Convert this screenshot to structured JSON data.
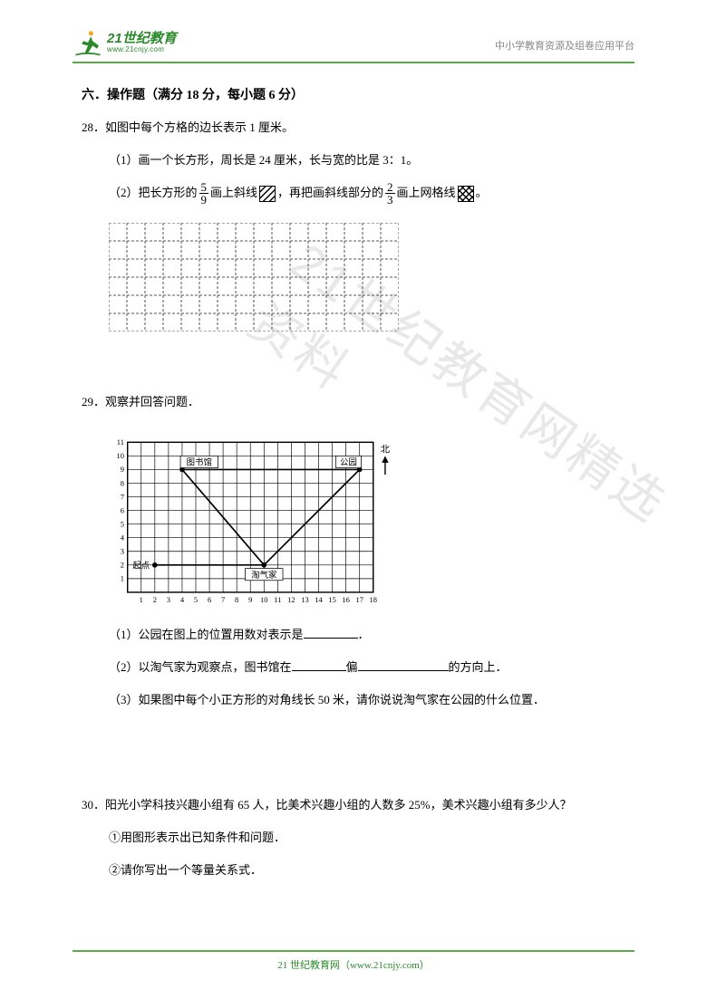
{
  "header": {
    "logo_cn_part1": "21",
    "logo_cn_part2": "世纪教育",
    "logo_url": "www.21cnjy.com",
    "right_text": "中小学教育资源及组卷应用平台"
  },
  "watermark": "21世纪教育网精选资料",
  "section_title": "六．操作题（满分 18 分，每小题 6 分）",
  "q28": {
    "num": "28．",
    "stem": "如图中每个方格的边长表示 1 厘米。",
    "p1": "（1）画一个长方形，周长是 24 厘米，长与宽的比是 3：1。",
    "p2_a": "（2）把长方形的",
    "p2_frac1_n": "5",
    "p2_frac1_d": "9",
    "p2_b": "画上斜线",
    "p2_c": "，再把画斜线部分的",
    "p2_frac2_n": "2",
    "p2_frac2_d": "3",
    "p2_d": "画上网格线",
    "p2_e": "。",
    "grid": {
      "cols": 16,
      "rows": 6,
      "cell": 20,
      "stroke": "#555555"
    }
  },
  "q29": {
    "num": "29．",
    "stem": "观察并回答问题．",
    "p1_a": "（1）公园在图上的位置用数对表示是",
    "p1_b": "．",
    "p2_a": "（2）以淘气家为观察点，图书馆在",
    "p2_b": "偏",
    "p2_c": "的方向上．",
    "p3": "（3）如果图中每个小正方形的对角线长 50 米，请你说说淘气家在公园的什么位置．",
    "blank_w1": 60,
    "blank_w2": 60,
    "blank_w3": 100,
    "chart": {
      "x_ticks": [
        "1",
        "2",
        "3",
        "4",
        "5",
        "6",
        "7",
        "8",
        "9",
        "10",
        "11",
        "12",
        "13",
        "14",
        "15",
        "16",
        "17",
        "18"
      ],
      "y_ticks": [
        "1",
        "2",
        "3",
        "4",
        "5",
        "6",
        "7",
        "8",
        "9",
        "10",
        "11"
      ],
      "points": {
        "home": {
          "x": 2,
          "y": 2,
          "label": "起点"
        },
        "library": {
          "x": 4,
          "y": 9,
          "label": "图书馆"
        },
        "taoqi": {
          "x": 10,
          "y": 2,
          "label": "淘气家"
        },
        "park": {
          "x": 17,
          "y": 9,
          "label": "公园"
        }
      },
      "compass_label": "北",
      "grid_color": "#000000",
      "bg": "#ffffff",
      "cell": 16
    }
  },
  "q30": {
    "num": "30．",
    "stem": "阳光小学科技兴趣小组有 65 人，比美术兴趣小组的人数多 25%，美术兴趣小组有多少人？",
    "p1": "①用图形表示出已知条件和问题．",
    "p2": "②请你写出一个等量关系式．"
  },
  "footer": {
    "text_a": "21 世纪教育网（",
    "url": "www.21cnjy.com",
    "text_b": "）"
  }
}
